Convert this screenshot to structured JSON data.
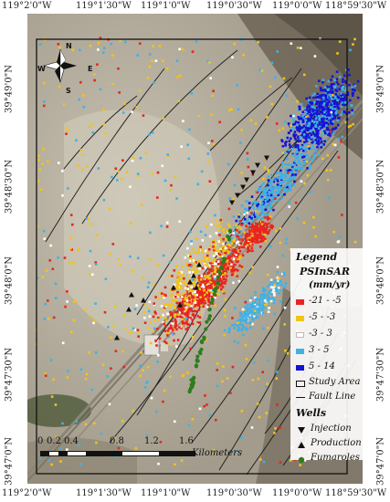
{
  "axes": {
    "top": [
      "119°2'0\"W",
      "119°1'30\"W",
      "119°1'0\"W",
      "119°0'30\"W",
      "119°0'0\"W",
      "118°59'30\"W"
    ],
    "bottom": [
      "119°2'0\"W",
      "119°1'30\"W",
      "119°1'0\"W",
      "119°0'30\"W",
      "119°0'0\"W",
      "118°59'30\"W"
    ],
    "left": [
      "39°49'0\"N",
      "39°48'30\"N",
      "39°48'0\"N",
      "39°47'30\"N",
      "39°47'0\"N"
    ],
    "right": [
      "39°49'0\"N",
      "39°48'30\"N",
      "39°48'0\"N",
      "39°47'30\"N",
      "39°47'0\"N"
    ]
  },
  "compass": {
    "n": "N",
    "s": "S",
    "e": "E",
    "w": "W"
  },
  "legend": {
    "title": "Legend",
    "subtitle": "PSInSAR",
    "unit": "(mm/yr)",
    "classes": [
      {
        "label": "-21 - -5",
        "color": "#e8251f"
      },
      {
        "label": "-5 - -3",
        "color": "#f0c419"
      },
      {
        "label": "-3 - 3",
        "color": "#ffffff"
      },
      {
        "label": "3 - 5",
        "color": "#3fb1e6"
      },
      {
        "label": "5 - 14",
        "color": "#1414d6"
      }
    ],
    "study_area": "Study Area",
    "fault_line": "Fault Line",
    "wells_title": "Wells",
    "injection": "Injection",
    "production": "Production",
    "fumaroles": "Fumaroles",
    "fumarole_color": "#2e7d1e"
  },
  "scale_bar": {
    "ticks": [
      "0",
      "0.2",
      "0.4",
      "0.8",
      "1.2",
      "1.6"
    ],
    "unit": "Kilometers"
  }
}
